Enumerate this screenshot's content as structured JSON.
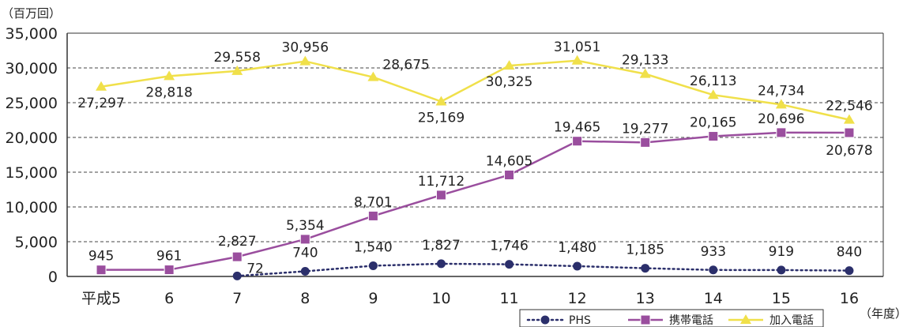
{
  "chart_data": {
    "type": "line",
    "y_unit_label": "（百万回）",
    "x_unit_label": "（年度）",
    "categories": [
      "平成5",
      "6",
      "7",
      "8",
      "9",
      "10",
      "11",
      "12",
      "13",
      "14",
      "15",
      "16"
    ],
    "ylim": [
      0,
      35000
    ],
    "yticks": [
      0,
      5000,
      10000,
      15000,
      20000,
      25000,
      30000,
      35000
    ],
    "ytick_labels": [
      "0",
      "5,000",
      "10,000",
      "15,000",
      "20,000",
      "25,000",
      "30,000",
      "35,000"
    ],
    "grid": "horizontal dashed",
    "legend_position": "bottom-right",
    "series": [
      {
        "name": "PHS",
        "color": "#2b2f6b",
        "line_style": "dotted",
        "marker": "circle",
        "values": [
          null,
          null,
          72,
          740,
          1540,
          1827,
          1746,
          1480,
          1185,
          933,
          919,
          840
        ],
        "labels": [
          null,
          null,
          "72",
          "740",
          "1,540",
          "1,827",
          "1,746",
          "1,480",
          "1,185",
          "933",
          "919",
          "840"
        ]
      },
      {
        "name": "携帯電話",
        "color": "#9a4e9e",
        "line_style": "solid",
        "marker": "square",
        "values": [
          945,
          961,
          2827,
          5354,
          8701,
          11712,
          14605,
          19465,
          19277,
          20165,
          20696,
          20678
        ],
        "labels": [
          "945",
          "961",
          "2,827",
          "5,354",
          "8,701",
          "11,712",
          "14,605",
          "19,465",
          "19,277",
          "20,165",
          "20,696",
          "20,678"
        ]
      },
      {
        "name": "加入電話",
        "color": "#f0e04a",
        "line_style": "solid",
        "marker": "triangle",
        "values": [
          27297,
          28818,
          29558,
          30956,
          28675,
          25169,
          30325,
          31051,
          29133,
          26113,
          24734,
          22546
        ],
        "labels": [
          "27,297",
          "28,818",
          "29,558",
          "30,956",
          "28,675",
          "25,169",
          "30,325",
          "31,051",
          "29,133",
          "26,113",
          "24,734",
          "22,546"
        ]
      }
    ]
  }
}
